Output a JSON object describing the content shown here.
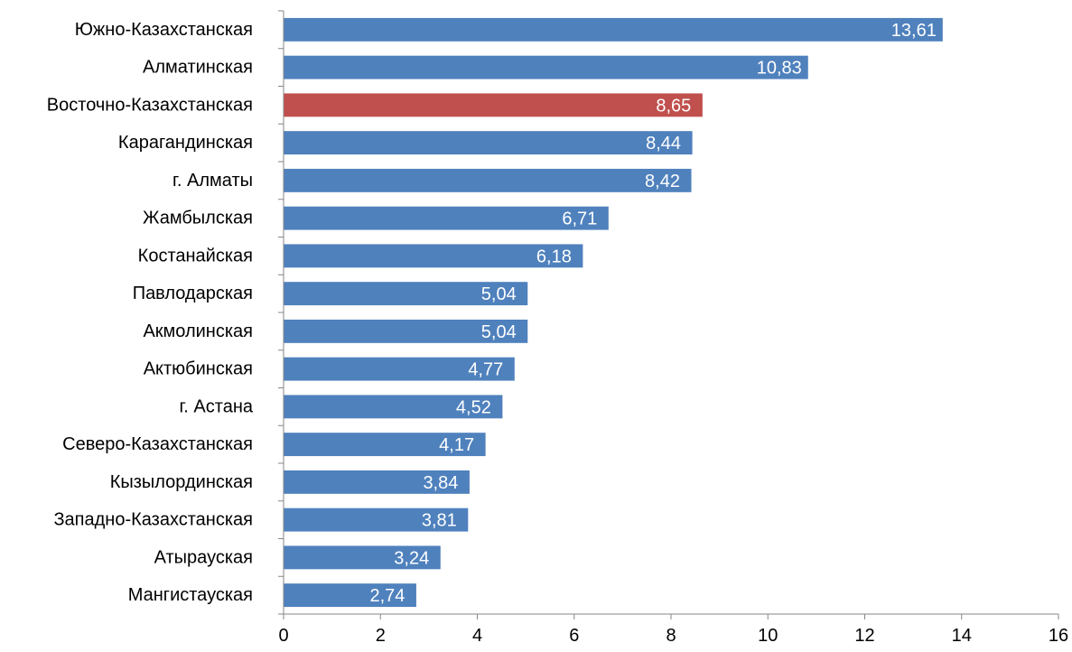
{
  "chart_data": {
    "type": "bar",
    "orientation": "horizontal",
    "title": "",
    "xlabel": "",
    "ylabel": "",
    "xlim": [
      0,
      16
    ],
    "xticks": [
      0,
      2,
      4,
      6,
      8,
      10,
      12,
      14,
      16
    ],
    "xtick_labels": [
      "0",
      "2",
      "4",
      "6",
      "8",
      "10",
      "12",
      "14",
      "16"
    ],
    "grid": false,
    "legend": "none",
    "categories": [
      "Южно-Казахстанская",
      "Алматинская",
      "Восточно-Казахстанская",
      "Карагандинская",
      "г. Алматы",
      "Жамбылская",
      "Костанайская",
      "Павлодарская",
      "Акмолинская",
      "Актюбинская",
      "г. Астана",
      "Северо-Казахстанская",
      "Кызылординская",
      "Западно-Казахстанская",
      "Атырауская",
      "Мангистауская"
    ],
    "values": [
      13.61,
      10.83,
      8.65,
      8.44,
      8.42,
      6.71,
      6.18,
      5.04,
      5.04,
      4.77,
      4.52,
      4.17,
      3.84,
      3.81,
      3.24,
      2.74
    ],
    "value_labels": [
      "13,61",
      "10,83",
      "8,65",
      "8,44",
      "8,42",
      "6,71",
      "6,18",
      "5,04",
      "5,04",
      "4,77",
      "4,52",
      "4,17",
      "3,84",
      "3,81",
      "3,24",
      "2,74"
    ],
    "highlight_index": 2,
    "colors": {
      "bar": "#4F81BD",
      "highlight": "#C0504D",
      "axis": "#868686",
      "data_label": "#FFFFFF",
      "text": "#000000"
    }
  }
}
